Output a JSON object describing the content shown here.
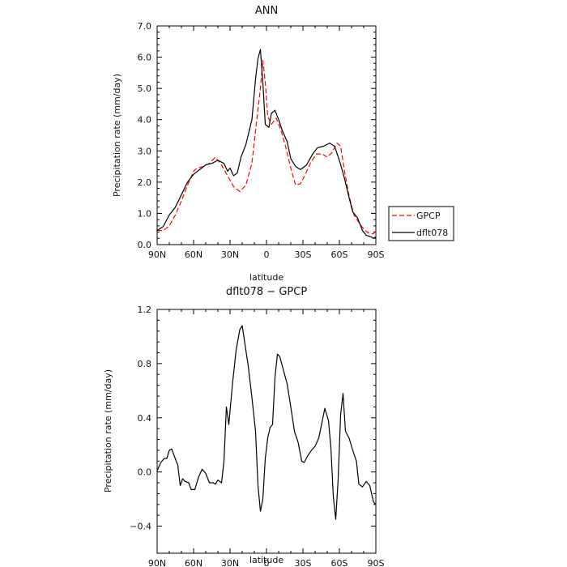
{
  "chart_data": [
    {
      "type": "line",
      "title": "ANN",
      "xlabel": "latitude",
      "ylabel": "Precipitation rate (mm/day)",
      "xlim": [
        90,
        -90
      ],
      "ylim": [
        0,
        7
      ],
      "x_ticks": [
        {
          "v": 90,
          "label": "90N"
        },
        {
          "v": 60,
          "label": "60N"
        },
        {
          "v": 30,
          "label": "30N"
        },
        {
          "v": 0,
          "label": "0"
        },
        {
          "v": -30,
          "label": "30S"
        },
        {
          "v": -60,
          "label": "60S"
        },
        {
          "v": -90,
          "label": "90S"
        }
      ],
      "y_ticks": [
        {
          "v": 0,
          "label": "0.0"
        },
        {
          "v": 1,
          "label": "1.0"
        },
        {
          "v": 2,
          "label": "2.0"
        },
        {
          "v": 3,
          "label": "3.0"
        },
        {
          "v": 4,
          "label": "4.0"
        },
        {
          "v": 5,
          "label": "5.0"
        },
        {
          "v": 6,
          "label": "6.0"
        },
        {
          "v": 7,
          "label": "7.0"
        }
      ],
      "legend_position": "right",
      "series": [
        {
          "name": "GPCP",
          "color": "#ff0000",
          "dash": "dashed",
          "points": [
            [
              90,
              0.45
            ],
            [
              85,
              0.45
            ],
            [
              80,
              0.6
            ],
            [
              75,
              0.95
            ],
            [
              70,
              1.4
            ],
            [
              65,
              1.9
            ],
            [
              60,
              2.35
            ],
            [
              57,
              2.45
            ],
            [
              52,
              2.5
            ],
            [
              47,
              2.6
            ],
            [
              42,
              2.8
            ],
            [
              37,
              2.55
            ],
            [
              32,
              2.2
            ],
            [
              27,
              1.85
            ],
            [
              22,
              1.7
            ],
            [
              17,
              1.9
            ],
            [
              12,
              2.6
            ],
            [
              8,
              4.0
            ],
            [
              5,
              5.0
            ],
            [
              3,
              5.9
            ],
            [
              1,
              5.2
            ],
            [
              -1,
              4.1
            ],
            [
              -4,
              3.85
            ],
            [
              -8,
              4.05
            ],
            [
              -12,
              3.65
            ],
            [
              -16,
              3.1
            ],
            [
              -20,
              2.45
            ],
            [
              -24,
              1.9
            ],
            [
              -28,
              1.95
            ],
            [
              -32,
              2.25
            ],
            [
              -36,
              2.6
            ],
            [
              -41,
              2.9
            ],
            [
              -46,
              2.9
            ],
            [
              -50,
              2.8
            ],
            [
              -54,
              2.95
            ],
            [
              -58,
              3.25
            ],
            [
              -61,
              3.15
            ],
            [
              -64,
              2.4
            ],
            [
              -68,
              1.55
            ],
            [
              -72,
              0.95
            ],
            [
              -77,
              0.65
            ],
            [
              -81,
              0.45
            ],
            [
              -85,
              0.35
            ],
            [
              -88,
              0.35
            ],
            [
              -90,
              0.45
            ]
          ]
        },
        {
          "name": "dflt078",
          "color": "#000000",
          "dash": "solid",
          "points": [
            [
              90,
              0.45
            ],
            [
              85,
              0.58
            ],
            [
              80,
              0.95
            ],
            [
              75,
              1.2
            ],
            [
              70,
              1.6
            ],
            [
              65,
              2.0
            ],
            [
              60,
              2.25
            ],
            [
              55,
              2.4
            ],
            [
              50,
              2.55
            ],
            [
              45,
              2.6
            ],
            [
              40,
              2.7
            ],
            [
              35,
              2.6
            ],
            [
              32,
              2.35
            ],
            [
              30,
              2.45
            ],
            [
              27,
              2.2
            ],
            [
              24,
              2.3
            ],
            [
              21,
              2.8
            ],
            [
              17,
              3.2
            ],
            [
              12,
              4.0
            ],
            [
              9,
              5.3
            ],
            [
              7,
              5.95
            ],
            [
              5,
              6.25
            ],
            [
              3,
              5.2
            ],
            [
              1,
              3.85
            ],
            [
              -2,
              3.75
            ],
            [
              -4,
              4.2
            ],
            [
              -7,
              4.3
            ],
            [
              -10,
              4.0
            ],
            [
              -13,
              3.65
            ],
            [
              -17,
              3.3
            ],
            [
              -20,
              2.75
            ],
            [
              -24,
              2.5
            ],
            [
              -28,
              2.4
            ],
            [
              -33,
              2.55
            ],
            [
              -38,
              2.9
            ],
            [
              -42,
              3.1
            ],
            [
              -47,
              3.15
            ],
            [
              -52,
              3.25
            ],
            [
              -56,
              3.15
            ],
            [
              -60,
              2.7
            ],
            [
              -64,
              2.15
            ],
            [
              -68,
              1.5
            ],
            [
              -71,
              1.05
            ],
            [
              -75,
              0.85
            ],
            [
              -79,
              0.45
            ],
            [
              -82,
              0.3
            ],
            [
              -86,
              0.25
            ],
            [
              -88,
              0.2
            ],
            [
              -90,
              0.25
            ]
          ]
        }
      ]
    },
    {
      "type": "line",
      "title": "dflt078 − GPCP",
      "xlabel": "latitude",
      "ylabel": "Precipitation rate (mm/day)",
      "xlim": [
        90,
        -90
      ],
      "ylim": [
        -0.6,
        1.2
      ],
      "x_ticks": [
        {
          "v": 90,
          "label": "90N"
        },
        {
          "v": 60,
          "label": "60N"
        },
        {
          "v": 30,
          "label": "30N"
        },
        {
          "v": 0,
          "label": "0"
        },
        {
          "v": -30,
          "label": "30S"
        },
        {
          "v": -60,
          "label": "60S"
        },
        {
          "v": -90,
          "label": "90S"
        }
      ],
      "y_ticks": [
        {
          "v": -0.4,
          "label": "−0.4"
        },
        {
          "v": 0,
          "label": "0.0"
        },
        {
          "v": 0.4,
          "label": "0.4"
        },
        {
          "v": 0.8,
          "label": "0.8"
        },
        {
          "v": 1.2,
          "label": "1.2"
        }
      ],
      "series": [
        {
          "name": "dflt078 − GPCP",
          "color": "#000000",
          "dash": "solid",
          "points": [
            [
              90,
              0.01
            ],
            [
              87,
              0.07
            ],
            [
              84,
              0.1
            ],
            [
              82,
              0.1
            ],
            [
              80,
              0.16
            ],
            [
              78,
              0.17
            ],
            [
              76,
              0.12
            ],
            [
              73,
              0.05
            ],
            [
              71,
              -0.1
            ],
            [
              69,
              -0.05
            ],
            [
              67,
              -0.07
            ],
            [
              64,
              -0.08
            ],
            [
              62,
              -0.13
            ],
            [
              59,
              -0.13
            ],
            [
              56,
              -0.04
            ],
            [
              53,
              0.02
            ],
            [
              50,
              -0.01
            ],
            [
              47,
              -0.08
            ],
            [
              44,
              -0.08
            ],
            [
              42,
              -0.09
            ],
            [
              40,
              -0.06
            ],
            [
              37,
              -0.08
            ],
            [
              35,
              0.08
            ],
            [
              33,
              0.48
            ],
            [
              31,
              0.35
            ],
            [
              28,
              0.65
            ],
            [
              25,
              0.9
            ],
            [
              22,
              1.05
            ],
            [
              20,
              1.08
            ],
            [
              18,
              0.96
            ],
            [
              15,
              0.78
            ],
            [
              12,
              0.55
            ],
            [
              9,
              0.3
            ],
            [
              7,
              -0.1
            ],
            [
              5,
              -0.29
            ],
            [
              3,
              -0.2
            ],
            [
              1,
              0.1
            ],
            [
              -1,
              0.25
            ],
            [
              -3,
              0.33
            ],
            [
              -5,
              0.35
            ],
            [
              -7,
              0.7
            ],
            [
              -9,
              0.87
            ],
            [
              -11,
              0.85
            ],
            [
              -14,
              0.75
            ],
            [
              -17,
              0.65
            ],
            [
              -20,
              0.48
            ],
            [
              -23,
              0.3
            ],
            [
              -26,
              0.22
            ],
            [
              -29,
              0.08
            ],
            [
              -31,
              0.07
            ],
            [
              -34,
              0.12
            ],
            [
              -37,
              0.16
            ],
            [
              -40,
              0.19
            ],
            [
              -43,
              0.25
            ],
            [
              -46,
              0.38
            ],
            [
              -48,
              0.47
            ],
            [
              -51,
              0.38
            ],
            [
              -53,
              0.18
            ],
            [
              -55,
              -0.18
            ],
            [
              -57,
              -0.35
            ],
            [
              -59,
              -0.05
            ],
            [
              -61,
              0.42
            ],
            [
              -63,
              0.58
            ],
            [
              -65,
              0.3
            ],
            [
              -68,
              0.25
            ],
            [
              -71,
              0.16
            ],
            [
              -74,
              0.08
            ],
            [
              -76,
              -0.09
            ],
            [
              -79,
              -0.11
            ],
            [
              -82,
              -0.07
            ],
            [
              -85,
              -0.1
            ],
            [
              -88,
              -0.22
            ],
            [
              -90,
              -0.24
            ]
          ]
        }
      ]
    }
  ]
}
